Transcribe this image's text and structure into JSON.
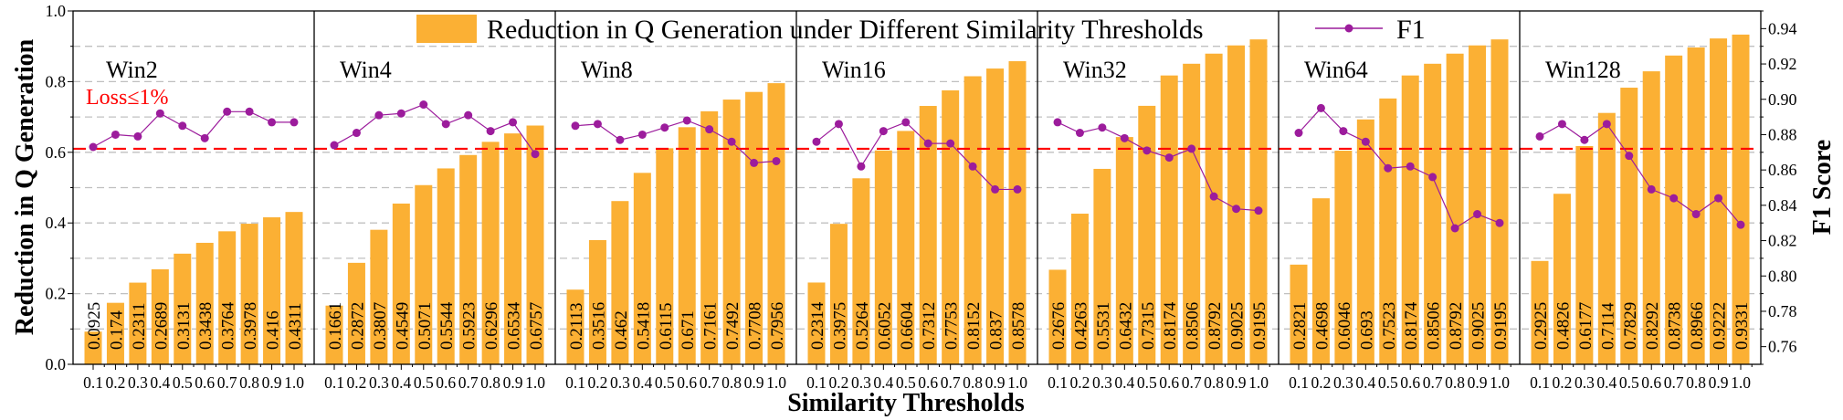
{
  "chart_data": {
    "type": "bar",
    "xlabel": "Similarity Thresholds",
    "ylabel": "Reduction in Q Generation",
    "y2label": "F1 Score",
    "ylim": [
      0,
      1.0
    ],
    "y2lim": [
      0.75,
      0.95
    ],
    "yticks": [
      "0.0",
      "0.2",
      "0.4",
      "0.6",
      "0.8",
      "1.0"
    ],
    "y2ticks": [
      "0.76",
      "0.78",
      "0.80",
      "0.82",
      "0.84",
      "0.86",
      "0.88",
      "0.90",
      "0.92",
      "0.94"
    ],
    "grid": true,
    "legend": {
      "placement": "top",
      "bar_label": "Reduction in Q Generation under Different Similarity Thresholds",
      "line_label": "F1"
    },
    "categories": [
      "0.1",
      "0.2",
      "0.3",
      "0.4",
      "0.5",
      "0.6",
      "0.7",
      "0.8",
      "0.9",
      "1.0"
    ],
    "threshold_line": {
      "label": "Loss≤1%",
      "f1_value": 0.872,
      "color": "#FF0000"
    },
    "colors": {
      "bar": "#FBB034",
      "line": "#9C1C9C"
    },
    "panels": [
      {
        "name": "Win2",
        "reduction": [
          0.0925,
          0.174,
          0.2311,
          0.2689,
          0.3131,
          0.3438,
          0.3764,
          0.3978,
          0.416,
          0.4311
        ],
        "f1": [
          0.873,
          0.88,
          0.879,
          0.892,
          0.885,
          0.878,
          0.893,
          0.893,
          0.887,
          0.887
        ]
      },
      {
        "name": "Win4",
        "reduction": [
          0.1661,
          0.2872,
          0.3807,
          0.4549,
          0.5071,
          0.5544,
          0.5923,
          0.6296,
          0.6534,
          0.6757
        ],
        "f1": [
          0.874,
          0.881,
          0.891,
          0.892,
          0.897,
          0.886,
          0.891,
          0.882,
          0.887,
          0.869
        ]
      },
      {
        "name": "Win8",
        "reduction": [
          0.2113,
          0.3516,
          0.462,
          0.5418,
          0.6115,
          0.671,
          0.7161,
          0.7492,
          0.7708,
          0.7956
        ],
        "f1": [
          0.885,
          0.886,
          0.877,
          0.88,
          0.884,
          0.888,
          0.883,
          0.876,
          0.864,
          0.865
        ]
      },
      {
        "name": "Win16",
        "reduction": [
          0.2314,
          0.3975,
          0.5264,
          0.6052,
          0.6604,
          0.7312,
          0.7753,
          0.8152,
          0.837,
          0.8578
        ],
        "f1": [
          0.876,
          0.886,
          0.862,
          0.882,
          0.887,
          0.875,
          0.875,
          0.862,
          0.849,
          0.849
        ]
      },
      {
        "name": "Win32",
        "reduction": [
          0.2676,
          0.4263,
          0.5531,
          0.6432,
          0.7315,
          0.8174,
          0.8506,
          0.8792,
          0.9025,
          0.9195
        ],
        "f1": [
          0.887,
          0.881,
          0.884,
          0.878,
          0.871,
          0.867,
          0.872,
          0.845,
          0.838,
          0.837
        ]
      },
      {
        "name": "Win64",
        "reduction": [
          0.2821,
          0.4698,
          0.6046,
          0.693,
          0.7523,
          0.8174,
          0.8506,
          0.8792,
          0.9025,
          0.9195
        ],
        "f1": [
          0.881,
          0.895,
          0.882,
          0.876,
          0.861,
          0.862,
          0.856,
          0.827,
          0.835,
          0.83
        ]
      },
      {
        "name": "Win128",
        "reduction": [
          0.2925,
          0.4826,
          0.6177,
          0.7114,
          0.7829,
          0.8292,
          0.8738,
          0.8966,
          0.9222,
          0.9331
        ],
        "f1": [
          0.879,
          0.886,
          0.877,
          0.886,
          0.868,
          0.849,
          0.844,
          0.835,
          0.844,
          0.829
        ]
      }
    ]
  }
}
